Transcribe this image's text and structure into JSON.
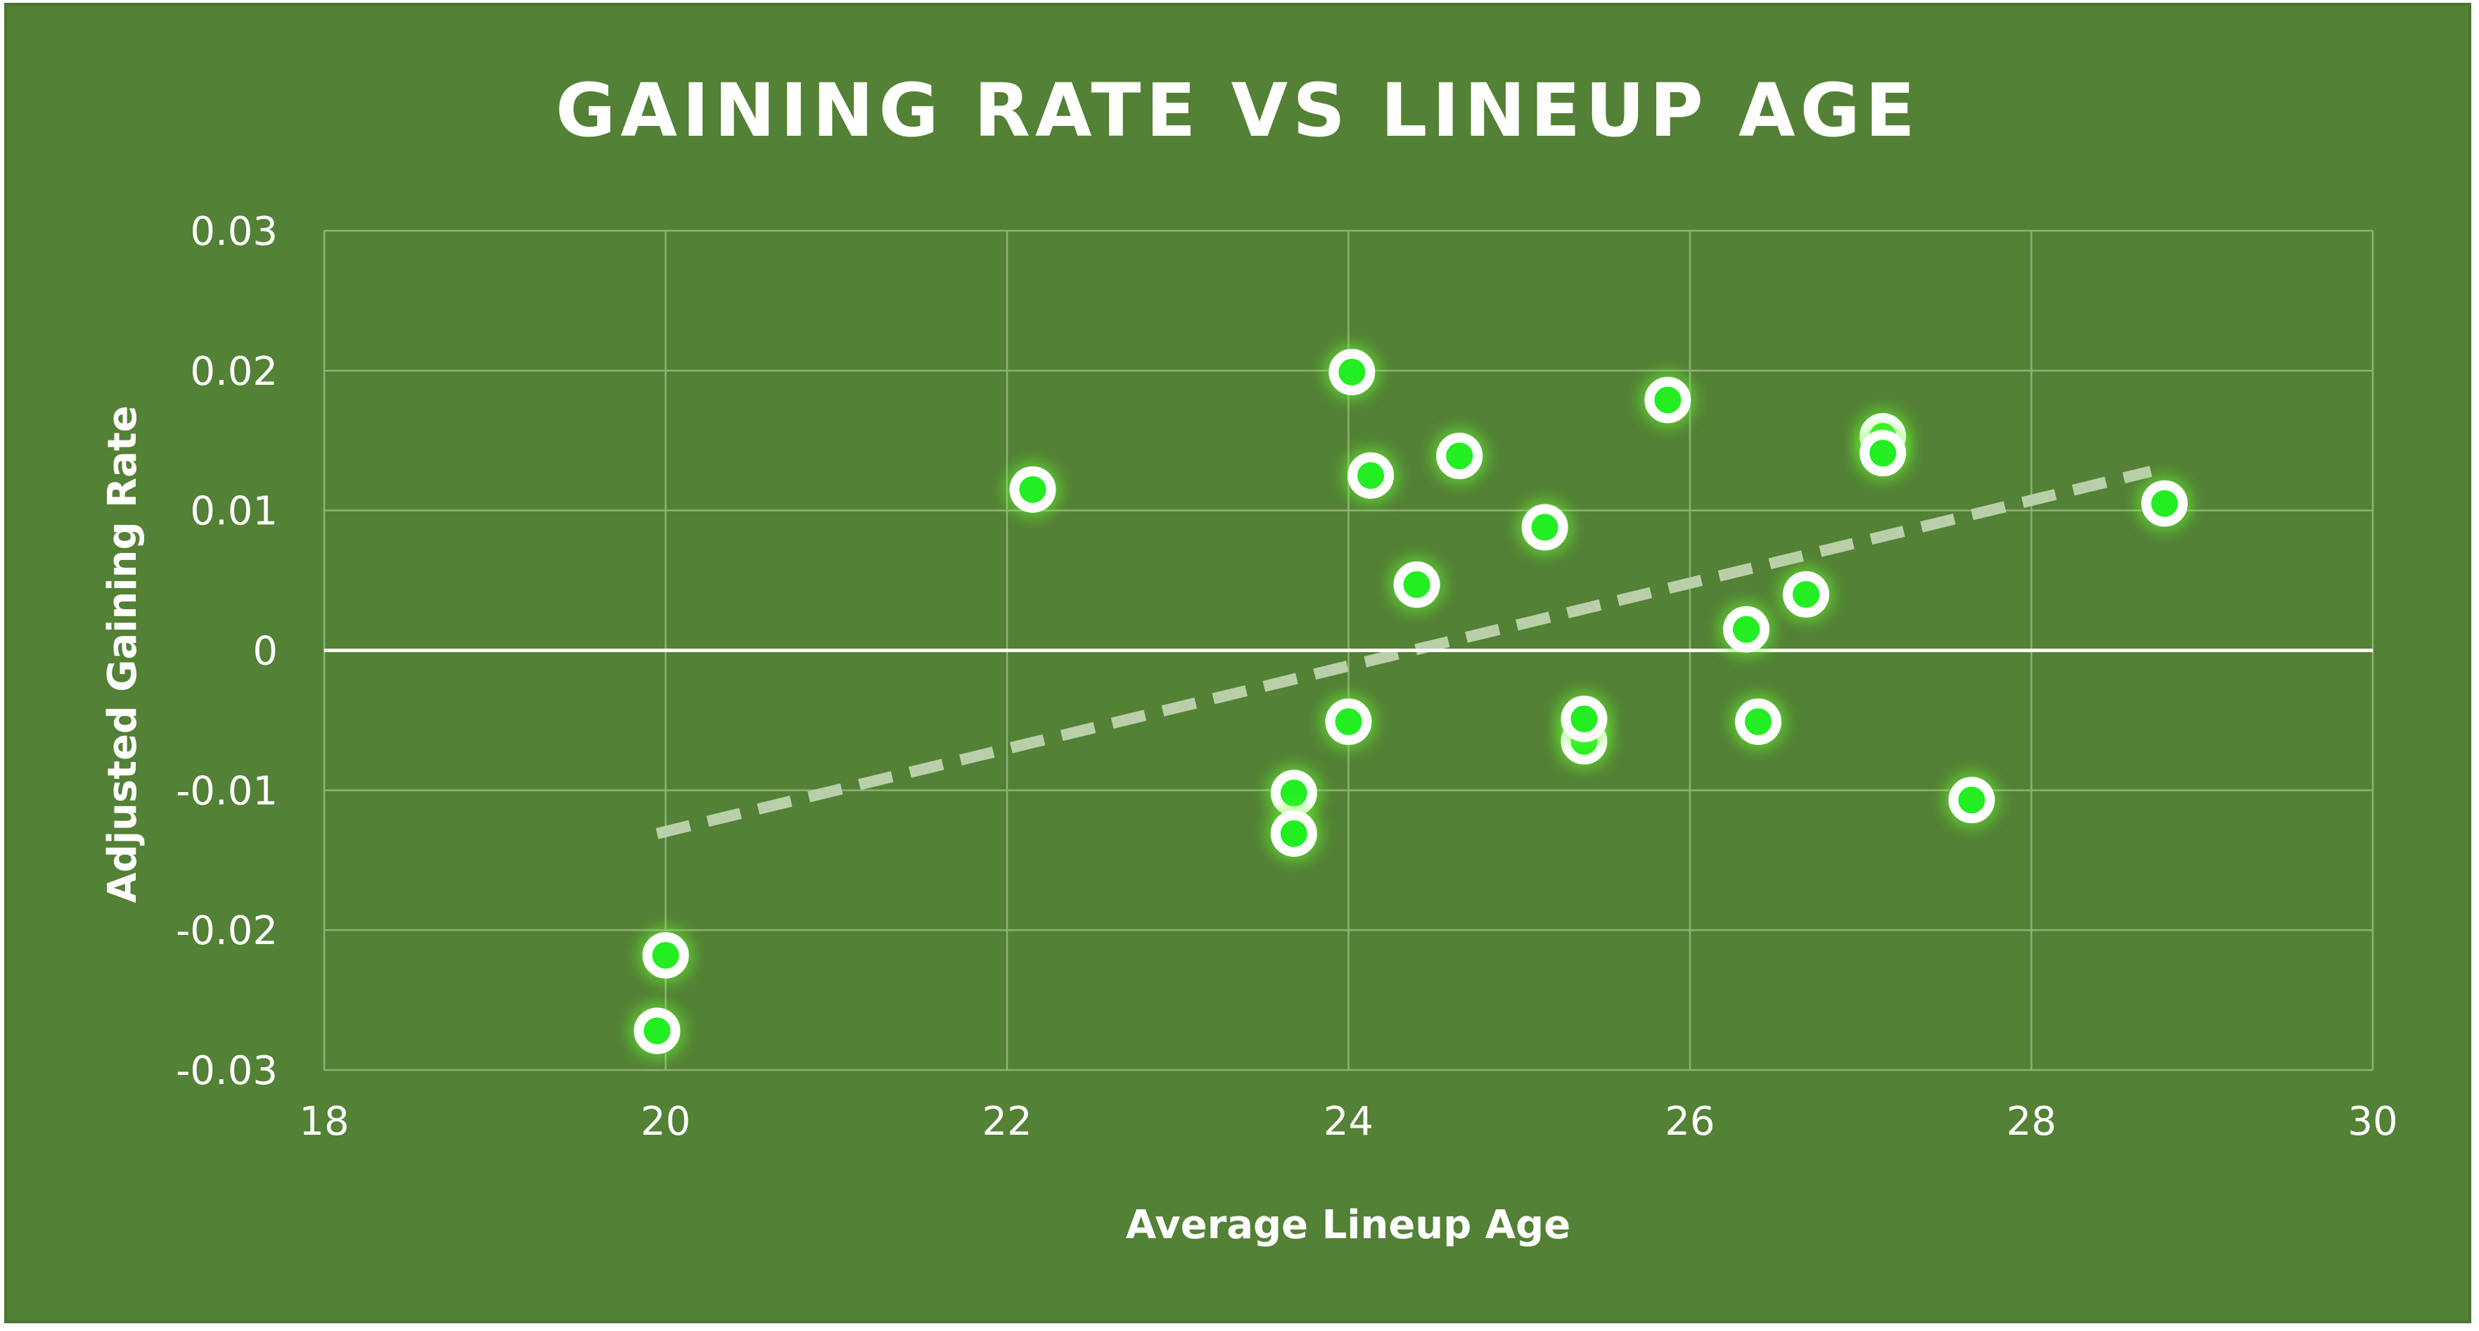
{
  "chart_data": {
    "type": "scatter",
    "title": "GAINING RATE VS LINEUP AGE",
    "xlabel": "Average Lineup Age",
    "ylabel": "Adjusted Gaining Rate",
    "xlim": [
      18,
      30
    ],
    "ylim": [
      -0.03,
      0.03
    ],
    "x_ticks": [
      18,
      20,
      22,
      24,
      26,
      28,
      30
    ],
    "y_ticks": [
      -0.03,
      -0.02,
      -0.01,
      0,
      0.01,
      0.02,
      0.03
    ],
    "x_tick_labels": [
      "18",
      "20",
      "22",
      "24",
      "26",
      "28",
      "30"
    ],
    "y_tick_labels": [
      "-0.03",
      "-0.02",
      "-0.01",
      "0",
      "0.01",
      "0.02",
      "0.03"
    ],
    "grid": true,
    "series": [
      {
        "points": [
          {
            "x": 19.95,
            "y": -0.0272
          },
          {
            "x": 20.0,
            "y": -0.0218
          },
          {
            "x": 22.15,
            "y": 0.0115
          },
          {
            "x": 23.68,
            "y": -0.0102
          },
          {
            "x": 23.68,
            "y": -0.0131
          },
          {
            "x": 24.0,
            "y": -0.0051
          },
          {
            "x": 24.02,
            "y": 0.0199
          },
          {
            "x": 24.13,
            "y": 0.0125
          },
          {
            "x": 24.4,
            "y": 0.0047
          },
          {
            "x": 24.65,
            "y": 0.0139
          },
          {
            "x": 25.15,
            "y": 0.0088
          },
          {
            "x": 25.38,
            "y": -0.0065
          },
          {
            "x": 25.38,
            "y": -0.0049
          },
          {
            "x": 25.87,
            "y": 0.0179
          },
          {
            "x": 26.33,
            "y": 0.0015
          },
          {
            "x": 26.4,
            "y": -0.0051
          },
          {
            "x": 26.68,
            "y": 0.004
          },
          {
            "x": 27.13,
            "y": 0.0153
          },
          {
            "x": 27.13,
            "y": 0.0141
          },
          {
            "x": 27.65,
            "y": -0.0107
          },
          {
            "x": 28.78,
            "y": 0.0105
          }
        ]
      }
    ],
    "trendline": {
      "type": "linear",
      "x": [
        19.95,
        28.7
      ],
      "y": [
        -0.0131,
        0.0128
      ],
      "style": "dashed"
    },
    "colors": {
      "background": "#538135",
      "gridline": "#8fb176",
      "zero_line": "#ffffff",
      "marker_fill": "#22ee22",
      "marker_outline": "#ffffff",
      "marker_glow": "#66ff33",
      "trendline": "#b9cfa9",
      "text": "#ffffff"
    }
  }
}
